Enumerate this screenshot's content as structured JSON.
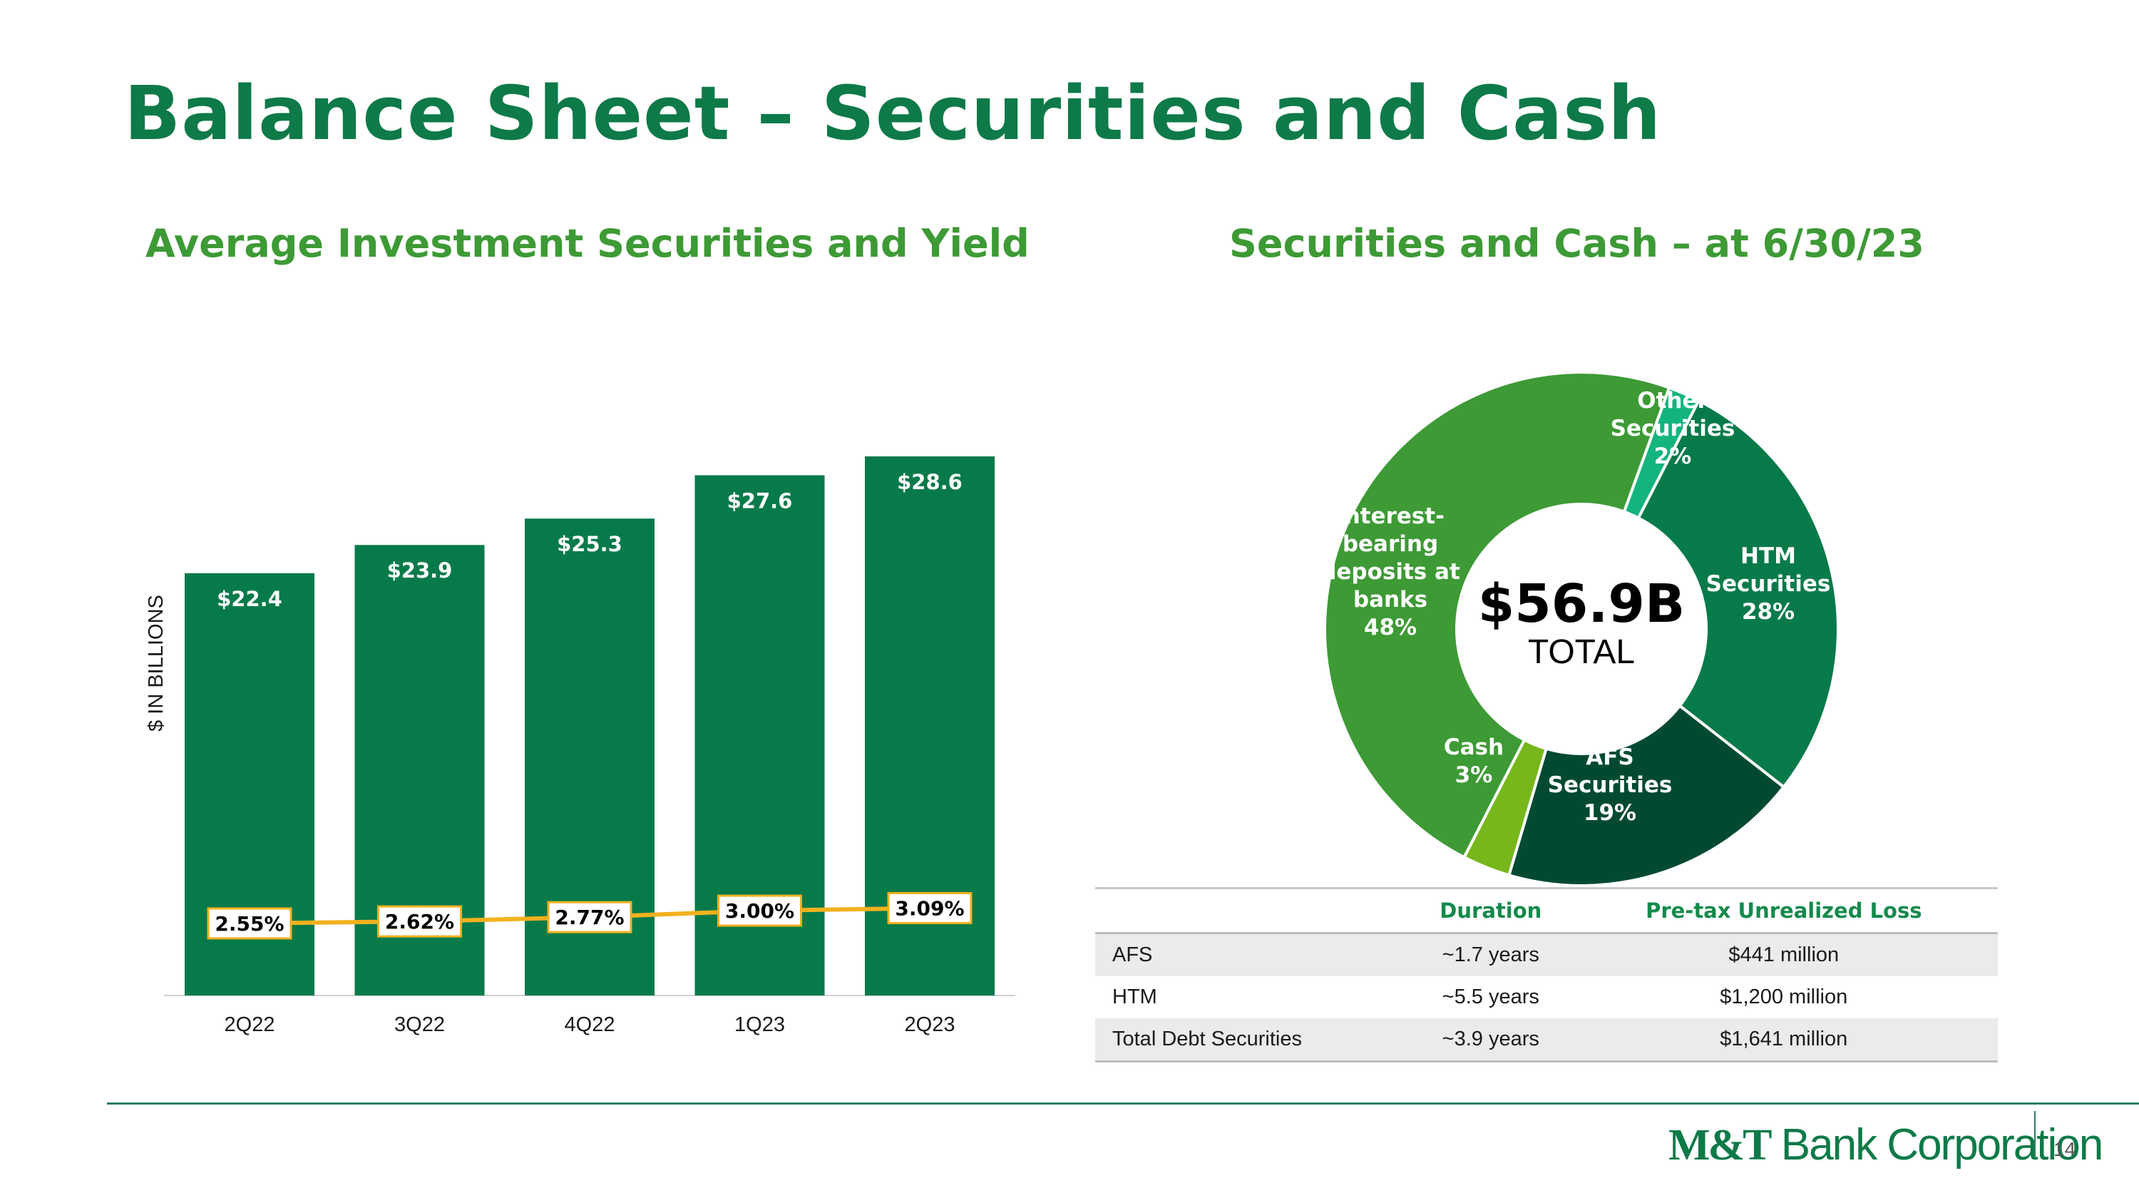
{
  "page": {
    "title": "Balance Sheet – Securities and Cash",
    "page_number": "14",
    "logo": {
      "bold": "M&T",
      "rest": " Bank Corporation"
    }
  },
  "colors": {
    "title_green": "#0e7a48",
    "subtitle_green": "#3d9a35",
    "bar_green": "#077a4a",
    "yield_line": "#f2b11e",
    "donut_interest": "#3d9a35",
    "donut_other": "#13b57c",
    "donut_htm": "#077a4a",
    "donut_afs": "#014a31",
    "donut_cash": "#77b71b"
  },
  "chart_data": [
    {
      "type": "bar",
      "title": "Average Investment Securities and Yield",
      "ylabel": "$ IN BILLIONS",
      "categories": [
        "2Q22",
        "3Q22",
        "4Q22",
        "1Q23",
        "2Q23"
      ],
      "values": [
        22.4,
        23.9,
        25.3,
        27.6,
        28.6
      ],
      "value_labels": [
        "$22.4",
        "$23.9",
        "$25.3",
        "$27.6",
        "$28.6"
      ],
      "ylim": [
        0,
        30
      ],
      "grid": false,
      "overlay_line": {
        "name": "Yield",
        "values": [
          2.55,
          2.62,
          2.77,
          3.0,
          3.09
        ],
        "labels": [
          "2.55%",
          "2.62%",
          "2.77%",
          "3.00%",
          "3.09%"
        ],
        "ylim": [
          0,
          20
        ]
      }
    },
    {
      "type": "pie",
      "title": "Securities and Cash – at 6/30/23",
      "center": {
        "value": "$56.9B",
        "label": "TOTAL"
      },
      "slices": [
        {
          "lines": [
            "Other",
            "Securities",
            "2%"
          ],
          "value": 2,
          "color_key": "donut_other"
        },
        {
          "lines": [
            "HTM",
            "Securities",
            "28%"
          ],
          "value": 28,
          "color_key": "donut_htm"
        },
        {
          "lines": [
            "AFS",
            "Securities",
            "19%"
          ],
          "value": 19,
          "color_key": "donut_afs"
        },
        {
          "lines": [
            "Cash",
            "3%"
          ],
          "value": 3,
          "color_key": "donut_cash"
        },
        {
          "lines": [
            "Interest-",
            "bearing",
            "deposits at",
            "banks",
            "48%"
          ],
          "value": 48,
          "color_key": "donut_interest"
        }
      ]
    }
  ],
  "table": {
    "headers": [
      "",
      "Duration",
      "Pre-tax Unrealized Loss"
    ],
    "rows": [
      [
        "AFS",
        "~1.7 years",
        "$441 million"
      ],
      [
        "HTM",
        "~5.5 years",
        "$1,200 million"
      ],
      [
        "Total Debt Securities",
        "~3.9 years",
        "$1,641 million"
      ]
    ]
  }
}
